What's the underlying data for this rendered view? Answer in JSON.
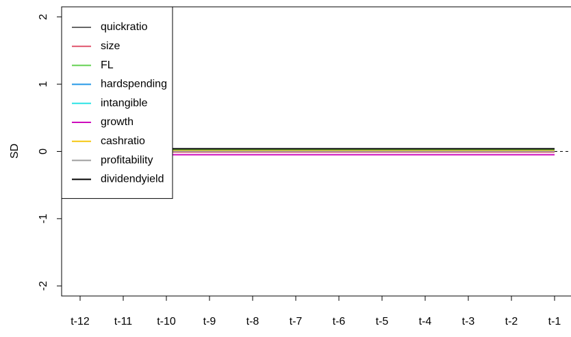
{
  "chart_data": {
    "type": "line",
    "y_label": "SD",
    "categories": [
      "t-12",
      "t-11",
      "t-10",
      "t-9",
      "t-8",
      "t-7",
      "t-6",
      "t-5",
      "t-4",
      "t-3",
      "t-2",
      "t-1"
    ],
    "series": [
      {
        "name": "quickratio",
        "color": "#666666",
        "values": [
          0.03,
          0.03,
          0.03,
          0.03,
          0.03,
          0.03,
          0.03,
          0.03,
          0.03,
          0.03,
          0.03,
          0.03
        ]
      },
      {
        "name": "size",
        "color": "#DF536B",
        "values": [
          -0.01,
          -0.01,
          -0.01,
          -0.01,
          -0.01,
          -0.01,
          -0.01,
          -0.01,
          -0.01,
          -0.01,
          -0.01,
          -0.01
        ]
      },
      {
        "name": "FL",
        "color": "#61D04F",
        "values": [
          0.02,
          0.02,
          0.02,
          0.02,
          0.02,
          0.02,
          0.02,
          0.02,
          0.02,
          0.02,
          0.02,
          0.02
        ]
      },
      {
        "name": "hardspending",
        "color": "#2297E6",
        "values": [
          0,
          0,
          0,
          0,
          0,
          0,
          0,
          0,
          0,
          0,
          0,
          0
        ]
      },
      {
        "name": "intangible",
        "color": "#28E2E5",
        "values": [
          0.01,
          0.01,
          0.01,
          0.01,
          0.01,
          0.01,
          0.01,
          0.01,
          0.01,
          0.01,
          0.01,
          0.01
        ]
      },
      {
        "name": "growth",
        "color": "#CD0BBC",
        "values": [
          -0.05,
          -0.05,
          -0.05,
          -0.05,
          -0.05,
          -0.05,
          -0.05,
          -0.05,
          -0.05,
          -0.05,
          -0.05,
          -0.05
        ]
      },
      {
        "name": "cashratio",
        "color": "#F5C710",
        "values": [
          0.01,
          0.01,
          0.01,
          0.01,
          0.01,
          0.01,
          0.01,
          0.01,
          0.01,
          0.01,
          0.01,
          0.01
        ]
      },
      {
        "name": "profitability",
        "color": "#9E9E9E",
        "values": [
          0,
          0,
          0,
          0,
          0,
          0,
          0,
          0,
          0,
          0,
          0,
          0
        ]
      },
      {
        "name": "dividendyield",
        "color": "#000000",
        "values": [
          0.04,
          0.04,
          0.04,
          0.04,
          0.04,
          0.04,
          0.04,
          0.04,
          0.04,
          0.04,
          0.04,
          0.04
        ]
      }
    ],
    "ylim": [
      -2.15,
      2.15
    ],
    "yticks": [
      -2,
      -1,
      0,
      1,
      2
    ],
    "reference_line": 0,
    "legend": "top-left"
  }
}
